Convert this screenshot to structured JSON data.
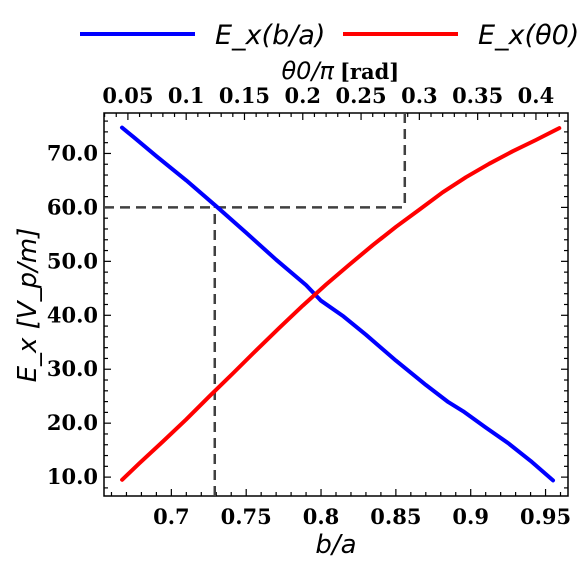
{
  "chart_data": {
    "type": "line",
    "xlabel": "b/a",
    "ylabel": "E_x [V_p/m]",
    "top_xlabel": "θ0/π",
    "top_xlabel_unit": "[rad]",
    "xlim": [
      0.655,
      0.965
    ],
    "ylim": [
      6.5,
      77.5
    ],
    "top_xlim": [
      0.0295,
      0.4275
    ],
    "x_ticks": [
      0.7,
      0.75,
      0.8,
      0.85,
      0.9,
      0.95
    ],
    "x_tick_labels": [
      "0.7",
      "0.75",
      "0.8",
      "0.85",
      "0.9",
      "0.95"
    ],
    "y_ticks": [
      10,
      20,
      30,
      40,
      50,
      60,
      70
    ],
    "y_tick_labels": [
      "10.0",
      "20.0",
      "30.0",
      "40.0",
      "50.0",
      "60.0",
      "70.0"
    ],
    "top_x_ticks": [
      0.05,
      0.1,
      0.15,
      0.2,
      0.25,
      0.3,
      0.35,
      0.4
    ],
    "top_x_tick_labels": [
      "0.05",
      "0.1",
      "0.15",
      "0.2",
      "0.25",
      "0.3",
      "0.35",
      "0.4"
    ],
    "legend_position": "top, outside plot",
    "grid": false,
    "series": [
      {
        "name": "E_x(b/a)",
        "color": "#0000ff",
        "axis": "bottom",
        "x": [
          0.667,
          0.675,
          0.69,
          0.71,
          0.73,
          0.75,
          0.77,
          0.79,
          0.8,
          0.815,
          0.83,
          0.85,
          0.87,
          0.885,
          0.895,
          0.91,
          0.925,
          0.94,
          0.955
        ],
        "y": [
          74.8,
          73.0,
          69.5,
          65.0,
          60.2,
          55.3,
          50.3,
          45.6,
          42.7,
          39.8,
          36.4,
          31.6,
          27.1,
          23.9,
          22.2,
          19.2,
          16.3,
          13.0,
          9.4
        ]
      },
      {
        "name": "E_x(θ0)",
        "color": "#ff0000",
        "axis": "top",
        "x": [
          0.045,
          0.06,
          0.08,
          0.1,
          0.12,
          0.14,
          0.16,
          0.18,
          0.2,
          0.22,
          0.24,
          0.26,
          0.28,
          0.3,
          0.32,
          0.34,
          0.36,
          0.38,
          0.4,
          0.42
        ],
        "y": [
          9.5,
          12.6,
          16.6,
          20.7,
          25.0,
          29.2,
          33.5,
          37.7,
          41.8,
          45.7,
          49.4,
          53.0,
          56.4,
          59.6,
          62.8,
          65.6,
          68.1,
          70.4,
          72.5,
          74.7
        ]
      }
    ],
    "reference_lines": [
      {
        "kind": "vertical",
        "axis": "bottom",
        "x": 0.729,
        "y_to": 60
      },
      {
        "kind": "horizontal",
        "y": 60
      },
      {
        "kind": "vertical",
        "axis": "top",
        "x": 0.2875,
        "y_from": 60
      }
    ]
  }
}
